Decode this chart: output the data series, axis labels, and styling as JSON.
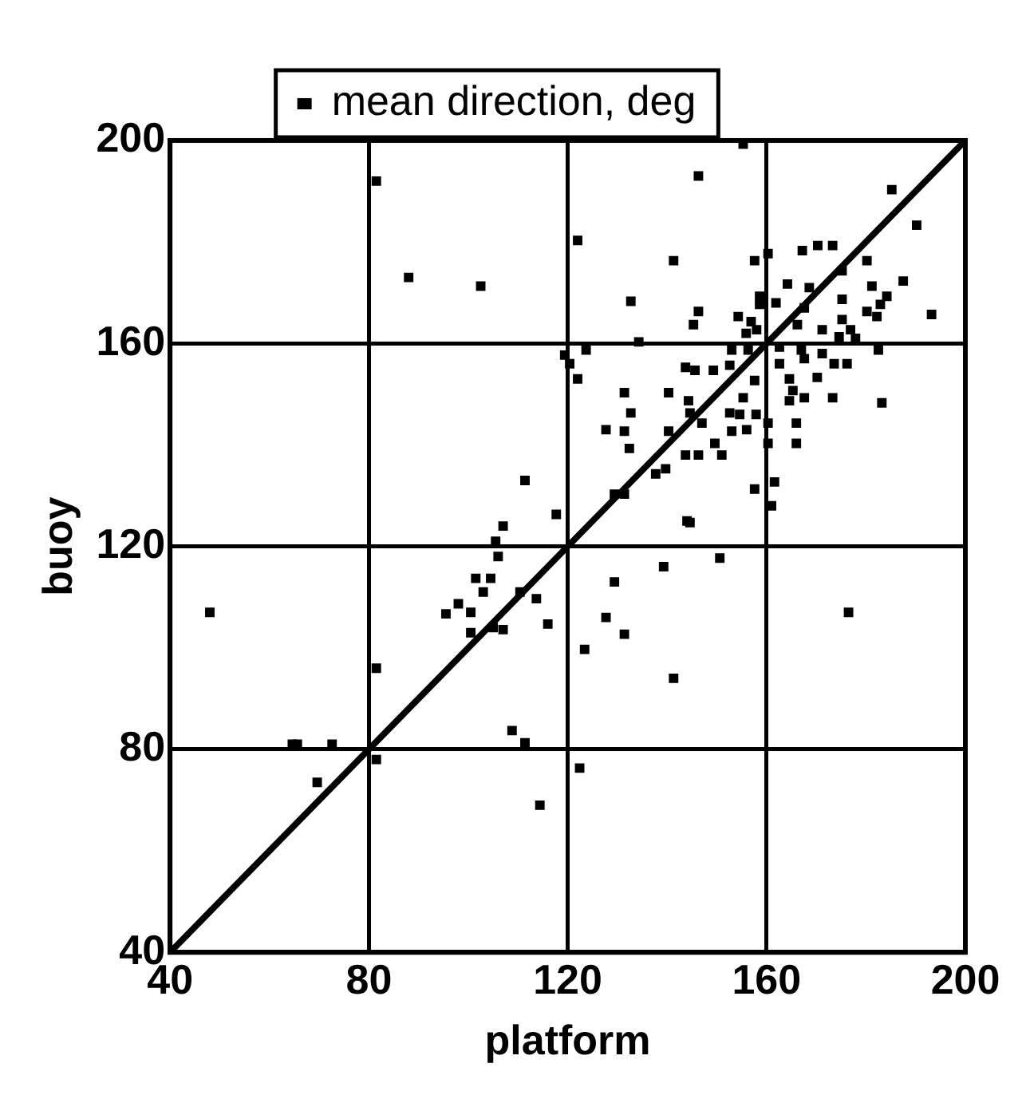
{
  "chart_data": {
    "type": "scatter",
    "xlabel": "platform",
    "ylabel": "buoy",
    "xlim": [
      40,
      200
    ],
    "ylim": [
      40,
      200
    ],
    "xticks": [
      40,
      80,
      120,
      160,
      200
    ],
    "yticks": [
      40,
      80,
      120,
      160,
      200
    ],
    "grid": true,
    "legend": "top",
    "series": [
      {
        "name": "mean direction, deg",
        "color": "#000000",
        "marker": "square",
        "x": [
          48,
          64.6,
          65.6,
          69.6,
          72.6,
          81.5,
          81.5,
          81.5,
          88,
          102.5,
          111.4,
          107,
          105.5,
          106,
          101.5,
          104.5,
          103,
          98,
          95.5,
          100.5,
          100.5,
          107,
          105,
          110.4,
          113.7,
          116,
          108.8,
          111.4,
          114.4,
          117.7,
          144,
          150.6,
          139.3,
          129.4,
          127.7,
          131.4,
          123.4,
          141.3,
          176.5,
          122.4,
          155.3,
          146.3,
          122,
          141.3,
          157.6,
          160.3,
          167.2,
          170.3,
          173.3,
          185.2,
          190.2,
          180.2,
          175.2,
          164.2,
          168.6,
          187.5,
          181.2,
          184.2,
          182.9,
          180.2,
          182.2,
          193.2,
          175.2,
          158.6,
          161.9,
          158.6,
          167.6,
          132.7,
          146.3,
          145.3,
          154.3,
          156.9,
          155.9,
          158,
          166.2,
          175.2,
          171.2,
          176.9,
          177.9,
          174.6,
          134.3,
          119.4,
          123.7,
          120.4,
          122,
          153,
          156.3,
          162.6,
          167,
          167.6,
          171.2,
          173.6,
          176.2,
          182.5,
          143.7,
          145.6,
          149.3,
          152.6,
          162.6,
          164.6,
          157.6,
          170.2,
          131.4,
          140.3,
          165.3,
          167.6,
          173.3,
          183.2,
          164.6,
          132.7,
          144.3,
          144.6,
          152.6,
          155.3,
          154.6,
          157.9,
          160.3,
          166,
          127.7,
          131.4,
          140.3,
          147,
          153,
          156,
          132.4,
          143.7,
          146.3,
          149.6,
          151,
          160.3,
          166,
          137.7,
          139.7,
          157.6,
          161.6,
          129.4,
          131.4,
          161,
          144.6
        ],
        "values": [
          107,
          81,
          81,
          73.5,
          81,
          96,
          78,
          192,
          173,
          171.3,
          133,
          124,
          121,
          118,
          113.7,
          113.7,
          111,
          108.7,
          106.7,
          107,
          103,
          103.6,
          104,
          111,
          109.7,
          104.7,
          83.7,
          81.3,
          69,
          126.3,
          125,
          117.7,
          116,
          113,
          106,
          102.7,
          99.7,
          94,
          107,
          76.3,
          199.3,
          193,
          180.3,
          176.3,
          176.3,
          177.7,
          178.3,
          179.3,
          179.3,
          190.3,
          183.3,
          176.3,
          174.3,
          171.7,
          171,
          172.3,
          171.3,
          169.3,
          167.7,
          166.3,
          165.3,
          165.7,
          168.7,
          169.3,
          168,
          167.7,
          167,
          168.3,
          166.3,
          163.7,
          165.3,
          164.3,
          162,
          162.7,
          163.7,
          164.7,
          162.7,
          162.7,
          161,
          161.3,
          160.3,
          157.7,
          158.7,
          156,
          153,
          158.7,
          158.7,
          159.3,
          158.7,
          157,
          158,
          156,
          156,
          158.7,
          155.3,
          154.7,
          154.7,
          155.7,
          156,
          153,
          152.7,
          153.3,
          150.3,
          150.3,
          150.7,
          149.3,
          149.3,
          148.3,
          148.7,
          146.3,
          148.7,
          146.3,
          146.3,
          149.3,
          146,
          146,
          144.3,
          144.3,
          143,
          142.7,
          142.7,
          144.3,
          142.7,
          143,
          139.3,
          138,
          138,
          140.3,
          138,
          140.3,
          140.3,
          134.3,
          135.3,
          131.3,
          132.7,
          130.3,
          130.3,
          128,
          124.7
        ]
      },
      {
        "type": "line",
        "color": "#000000",
        "marker": "none",
        "x": [
          40,
          200
        ],
        "values": [
          40,
          200
        ]
      }
    ]
  }
}
